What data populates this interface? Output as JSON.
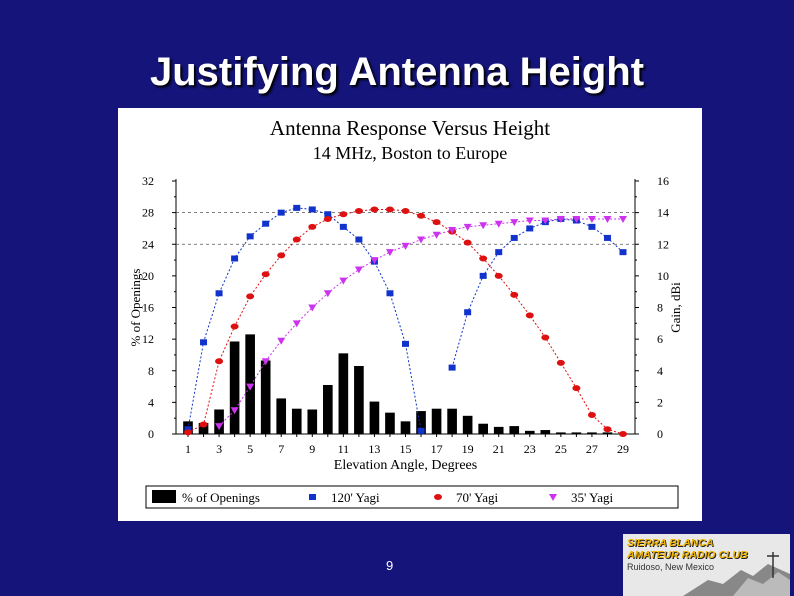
{
  "slide": {
    "title": "Justifying Antenna Height",
    "page_number": "9"
  },
  "logo": {
    "line1": "SIERRA BLANCA",
    "line2": "AMATEUR RADIO CLUB",
    "line3": "Ruidoso, New Mexico"
  },
  "colors": {
    "background": "#14147a",
    "bars": "#000000",
    "yagi120": "#1133cc",
    "yagi70": "#dd1111",
    "yagi35": "#cc33ee"
  },
  "chart_data": {
    "type": "bar",
    "title": "Antenna Response Versus Height",
    "subtitle": "14 MHz, Boston to Europe",
    "xlabel": "Elevation Angle, Degrees",
    "ylabel_left": "% of Openings",
    "ylabel_right": "Gain, dBi",
    "x": [
      1,
      2,
      3,
      4,
      5,
      6,
      7,
      8,
      9,
      10,
      11,
      12,
      13,
      14,
      15,
      16,
      17,
      18,
      19,
      20,
      21,
      22,
      23,
      24,
      25,
      26,
      27,
      28,
      29
    ],
    "x_tick_labels": [
      "1",
      "3",
      "5",
      "7",
      "9",
      "11",
      "13",
      "15",
      "17",
      "19",
      "21",
      "23",
      "25",
      "27",
      "29"
    ],
    "left_ticks": [
      "0",
      "4",
      "8",
      "12",
      "16",
      "20",
      "24",
      "28",
      "32"
    ],
    "right_ticks": [
      "0",
      "2",
      "4",
      "6",
      "8",
      "10",
      "12",
      "14",
      "16"
    ],
    "ylim_left": [
      0,
      32
    ],
    "ylim_right": [
      0,
      16
    ],
    "grid": "dashed horizontal lines at 24 and 28 (left axis)",
    "bar_series": {
      "name": "% of Openings",
      "values": [
        1.6,
        1.4,
        3.1,
        11.7,
        12.6,
        9.3,
        4.5,
        3.2,
        3.1,
        6.2,
        10.2,
        8.6,
        4.1,
        2.7,
        1.6,
        2.9,
        3.2,
        3.2,
        2.3,
        1.3,
        0.9,
        1.0,
        0.4,
        0.5,
        0.2,
        0.2,
        0.2,
        0.2,
        0
      ]
    },
    "series": [
      {
        "name": "120' Yagi",
        "marker": "square",
        "values": [
          0.3,
          5.8,
          8.9,
          11.1,
          12.5,
          13.3,
          14.0,
          14.3,
          14.2,
          13.9,
          13.1,
          12.3,
          10.9,
          8.9,
          5.7,
          0.2,
          null,
          4.2,
          7.7,
          10.0,
          11.5,
          12.4,
          13.0,
          13.4,
          13.6,
          13.5,
          13.1,
          12.4,
          11.5
        ]
      },
      {
        "name": "70' Yagi",
        "marker": "circle",
        "values": [
          0.1,
          0.6,
          4.6,
          6.8,
          8.7,
          10.1,
          11.3,
          12.3,
          13.1,
          13.6,
          13.9,
          14.1,
          14.2,
          14.2,
          14.1,
          13.8,
          13.4,
          12.8,
          12.1,
          11.1,
          10.0,
          8.8,
          7.5,
          6.1,
          4.5,
          2.9,
          1.2,
          0.3,
          0
        ]
      },
      {
        "name": "35' Yagi",
        "marker": "triangle-down",
        "values": [
          null,
          null,
          0.5,
          1.5,
          3.0,
          4.6,
          5.9,
          7.0,
          8.0,
          8.9,
          9.7,
          10.4,
          11.0,
          11.5,
          11.9,
          12.3,
          12.6,
          12.9,
          13.1,
          13.2,
          13.3,
          13.4,
          13.5,
          13.5,
          13.6,
          13.6,
          13.6,
          13.6,
          13.6
        ]
      }
    ],
    "legend": [
      "% of Openings",
      "120' Yagi",
      "70' Yagi",
      "35' Yagi"
    ],
    "legend_position": "bottom"
  }
}
